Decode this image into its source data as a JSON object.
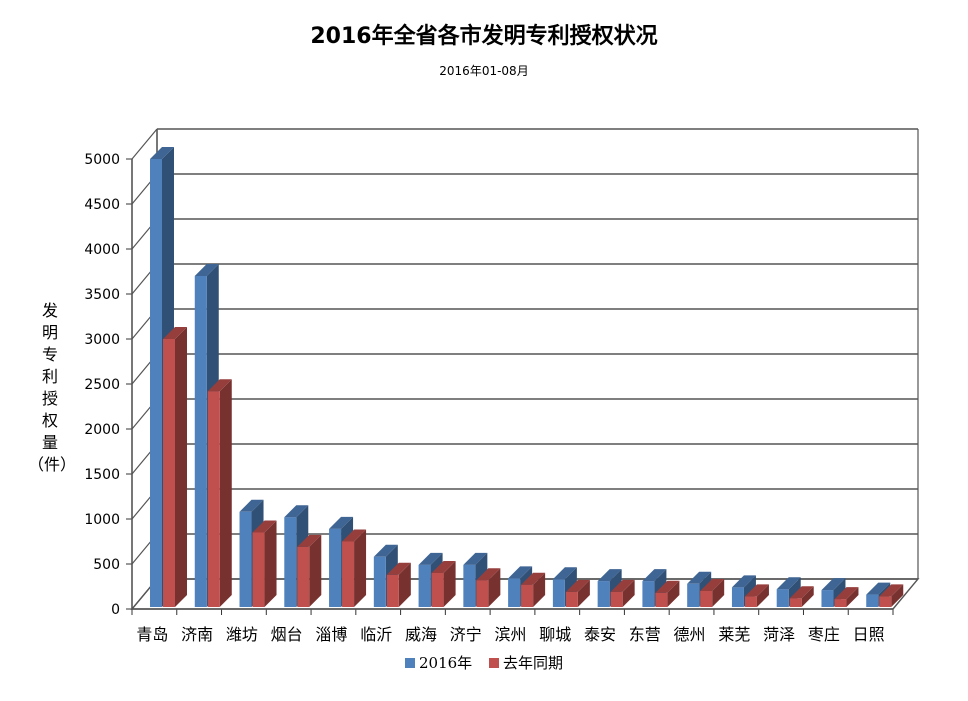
{
  "chart_data": {
    "type": "bar",
    "title": "2016年全省各市发明专利授权状况",
    "subtitle": "2016年01-08月",
    "ylabel": "发明专利授权量（件）",
    "ylim": [
      0,
      5000
    ],
    "yticks": [
      "0",
      "500",
      "1000",
      "1500",
      "2000",
      "2500",
      "3000",
      "3500",
      "4000",
      "4500",
      "5000"
    ],
    "grid": true,
    "legend_position": "bottom",
    "categories": [
      "青岛",
      "济南",
      "潍坊",
      "烟台",
      "淄博",
      "临沂",
      "威海",
      "济宁",
      "滨州",
      "聊城",
      "泰安",
      "东营",
      "德州",
      "莱芜",
      "菏泽",
      "枣庄",
      "日照"
    ],
    "series": [
      {
        "name": "2016年",
        "color": "#4f81bd",
        "values": [
          5000,
          3700,
          1080,
          1020,
          890,
          580,
          490,
          490,
          340,
          330,
          310,
          310,
          280,
          240,
          220,
          210,
          160
        ]
      },
      {
        "name": "去年同期",
        "color": "#c0504d",
        "values": [
          3000,
          2420,
          850,
          690,
          750,
          380,
          400,
          320,
          270,
          190,
          190,
          180,
          200,
          140,
          120,
          110,
          140
        ]
      }
    ]
  }
}
